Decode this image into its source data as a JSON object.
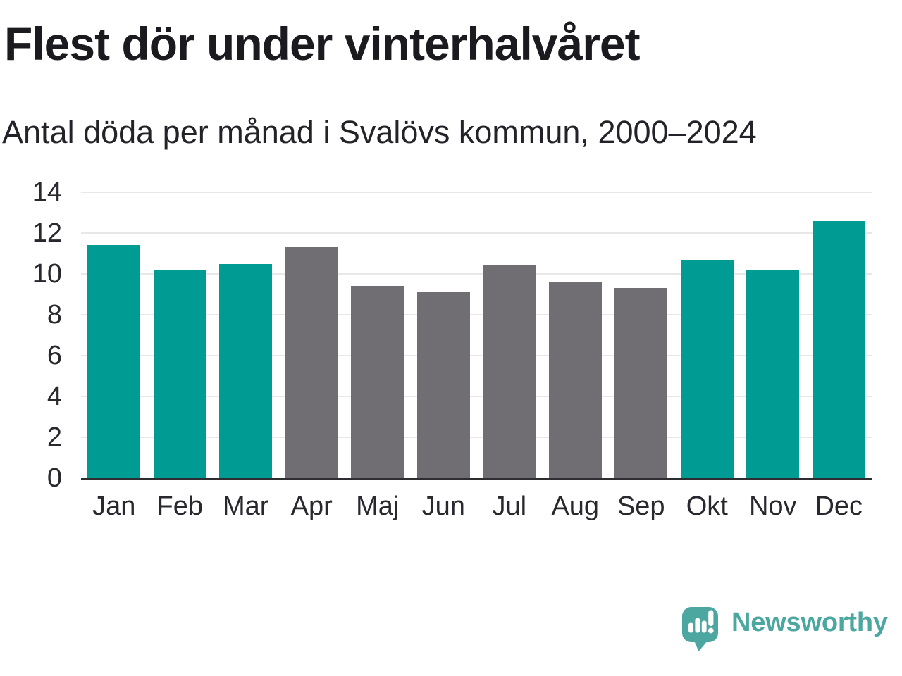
{
  "header": {
    "title": "Flest dör under vinterhalvåret",
    "subtitle": "Antal döda per månad i Svalövs kommun, 2000–2024"
  },
  "chart_data": {
    "type": "bar",
    "title": "Flest dör under vinterhalvåret",
    "subtitle": "Antal döda per månad i Svalövs kommun, 2000–2024",
    "categories": [
      "Jan",
      "Feb",
      "Mar",
      "Apr",
      "Maj",
      "Jun",
      "Jul",
      "Aug",
      "Sep",
      "Okt",
      "Nov",
      "Dec"
    ],
    "values": [
      11.4,
      10.2,
      10.5,
      11.3,
      9.4,
      9.1,
      10.4,
      9.6,
      9.3,
      10.7,
      10.2,
      12.6
    ],
    "bar_groups": [
      "winter",
      "winter",
      "winter",
      "summer",
      "summer",
      "summer",
      "summer",
      "summer",
      "summer",
      "winter",
      "winter",
      "winter"
    ],
    "group_colors": {
      "winter": "#009c93",
      "summer": "#706e73"
    },
    "xlabel": "",
    "ylabel": "",
    "ylim": [
      0,
      14
    ],
    "yticks": [
      0,
      2,
      4,
      6,
      8,
      10,
      12,
      14
    ],
    "grid": true,
    "legend": false
  },
  "footer": {
    "brand": "Newsworthy"
  },
  "colors": {
    "accent_teal": "#009c93",
    "neutral_gray": "#706e73",
    "brand_teal": "#4ca7a1",
    "gridline": "#e8e8e8",
    "axis_line": "#2e2d32",
    "title_text": "#1b1a1f",
    "axis_text": "#29282e"
  }
}
